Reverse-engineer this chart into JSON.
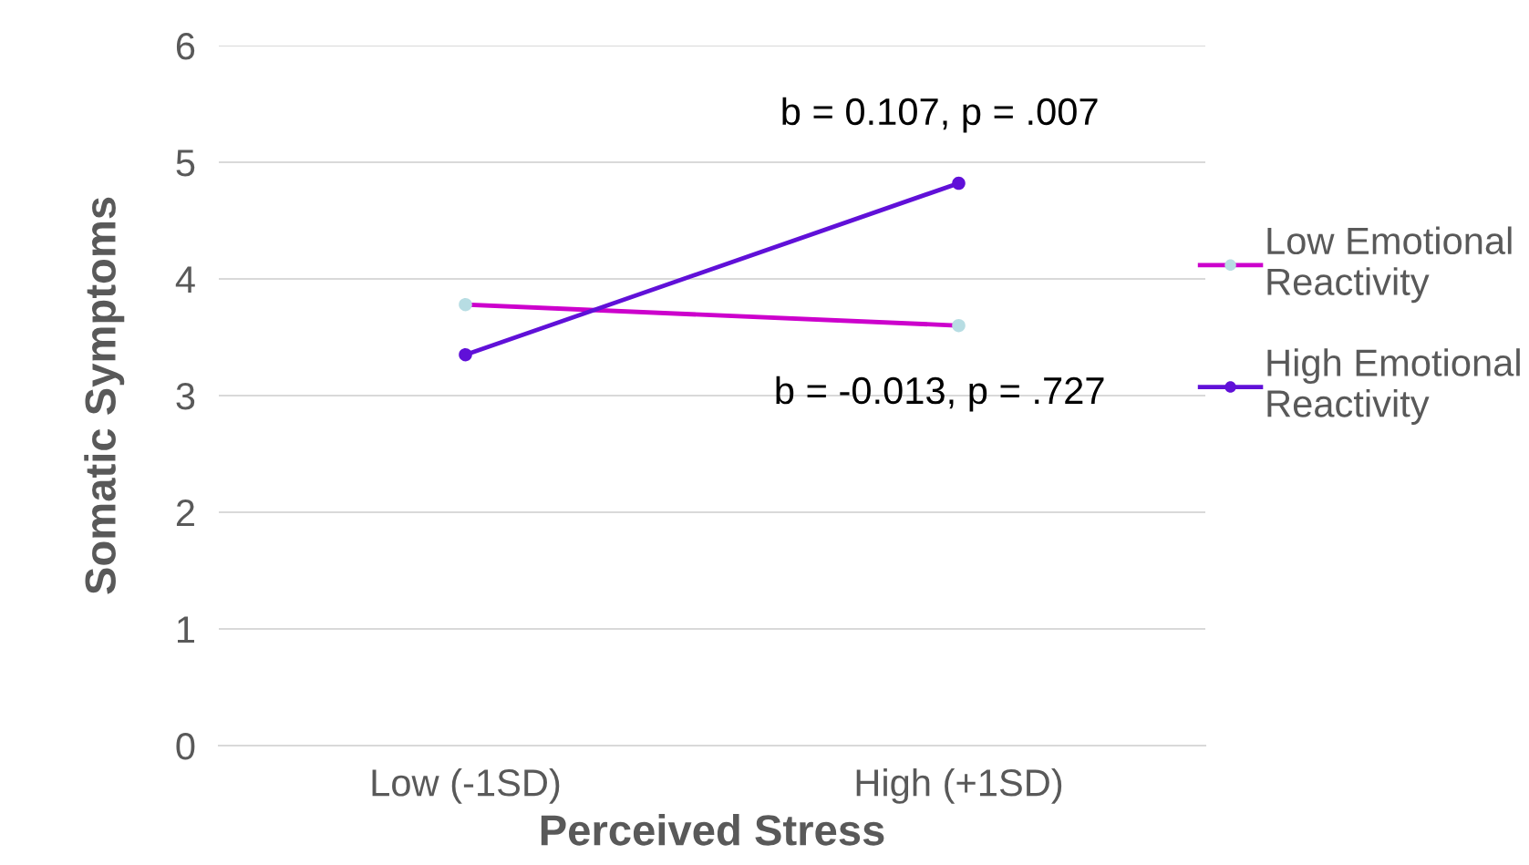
{
  "chart_data": {
    "type": "line",
    "xlabel": "Perceived Stress",
    "ylabel": "Somatic Symptoms",
    "categories": [
      "Low (-1SD)",
      "High (+1SD)"
    ],
    "series": [
      {
        "name": "Low Emotional Reactivity",
        "color": "#cc00cc",
        "colors": [
          "#b7dde3",
          "#b7dde3"
        ],
        "values": [
          3.78,
          3.6
        ]
      },
      {
        "name": "High Emotional Reactivity",
        "color": "#6010d8",
        "colors": [
          "#6010d8",
          "#6010d8"
        ],
        "values": [
          3.35,
          4.82
        ]
      }
    ],
    "annotations": [
      {
        "text": "b = 0.107, p = .007",
        "x": "High (+1SD)",
        "y": 4.82
      },
      {
        "text": "b = -0.013, p = .727",
        "x": "High (+1SD)",
        "y": 3.6
      }
    ],
    "ylim": [
      0,
      6
    ],
    "yticks": [
      0,
      1,
      2,
      3,
      4,
      5,
      6
    ],
    "grid": "y",
    "legend": "right",
    "marker": "circle",
    "line_style": "solid"
  }
}
